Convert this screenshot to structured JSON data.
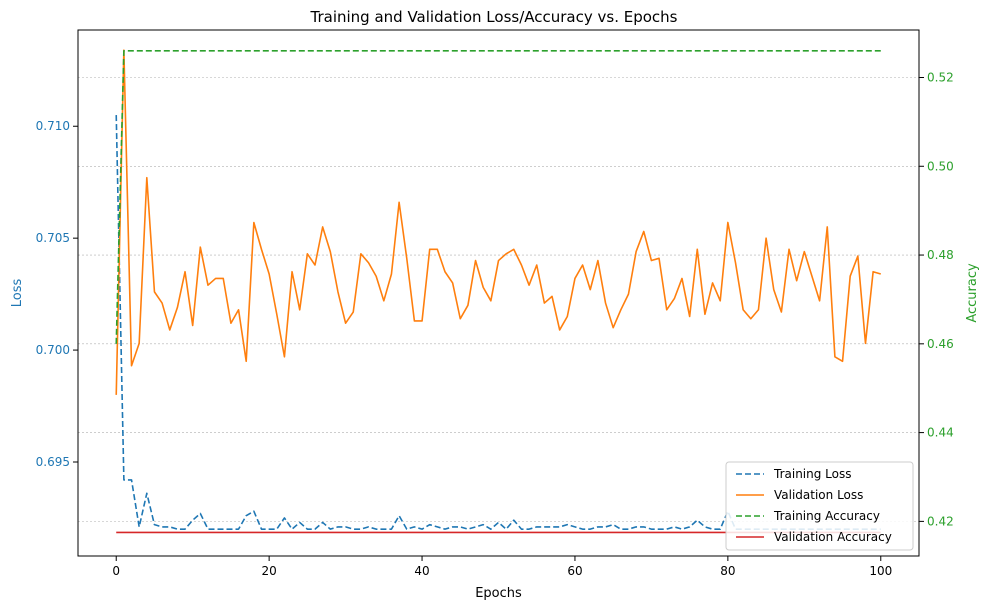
{
  "chart_data": {
    "type": "line",
    "title": "Training and Validation Loss/Accuracy vs. Epochs",
    "xlabel": "Epochs",
    "ylabel_left": "Loss",
    "ylabel_right": "Accuracy",
    "xlim": [
      -5,
      105
    ],
    "ylim_left": [
      0.6908,
      0.7143
    ],
    "ylim_right": [
      0.4122,
      0.5307
    ],
    "x_ticks": [
      0,
      20,
      40,
      60,
      80,
      100
    ],
    "x_tick_labels": [
      "0",
      "20",
      "40",
      "60",
      "80",
      "100"
    ],
    "y_left_ticks": [
      0.695,
      0.7,
      0.705,
      0.71
    ],
    "y_left_tick_labels": [
      "0.695",
      "0.700",
      "0.705",
      "0.710"
    ],
    "y_right_ticks": [
      0.42,
      0.44,
      0.46,
      0.48,
      0.5,
      0.52
    ],
    "y_right_tick_labels": [
      "0.42",
      "0.44",
      "0.46",
      "0.48",
      "0.50",
      "0.52"
    ],
    "grid": true,
    "legend_position": "lower-right",
    "colors": {
      "training_loss": "#1f77b4",
      "validation_loss": "#ff7f0e",
      "training_accuracy": "#2ca02c",
      "validation_accuracy": "#d62728",
      "grid": "#b0b0b0"
    },
    "x": [
      0,
      1,
      2,
      3,
      4,
      5,
      6,
      7,
      8,
      9,
      10,
      11,
      12,
      13,
      14,
      15,
      16,
      17,
      18,
      19,
      20,
      21,
      22,
      23,
      24,
      25,
      26,
      27,
      28,
      29,
      30,
      31,
      32,
      33,
      34,
      35,
      36,
      37,
      38,
      39,
      40,
      41,
      42,
      43,
      44,
      45,
      46,
      47,
      48,
      49,
      50,
      51,
      52,
      53,
      54,
      55,
      56,
      57,
      58,
      59,
      60,
      61,
      62,
      63,
      64,
      65,
      66,
      67,
      68,
      69,
      70,
      71,
      72,
      73,
      74,
      75,
      76,
      77,
      78,
      79,
      80,
      81,
      82,
      83,
      84,
      85,
      86,
      87,
      88,
      89,
      90,
      91,
      92,
      93,
      94,
      95,
      96,
      97,
      98,
      99,
      100
    ],
    "series": [
      {
        "name": "Training Loss",
        "axis": "left",
        "style": "dashed",
        "values": [
          0.7105,
          0.6942,
          0.6942,
          0.6921,
          0.6936,
          0.6922,
          0.6921,
          0.6921,
          0.692,
          0.692,
          0.6924,
          0.6927,
          0.692,
          0.692,
          0.692,
          0.692,
          0.692,
          0.6926,
          0.6928,
          0.692,
          0.692,
          0.692,
          0.6925,
          0.692,
          0.6923,
          0.692,
          0.692,
          0.6923,
          0.692,
          0.6921,
          0.6921,
          0.692,
          0.692,
          0.6921,
          0.692,
          0.692,
          0.692,
          0.6926,
          0.692,
          0.6921,
          0.692,
          0.6922,
          0.6921,
          0.692,
          0.6921,
          0.6921,
          0.692,
          0.6921,
          0.6922,
          0.692,
          0.6923,
          0.692,
          0.6924,
          0.692,
          0.692,
          0.6921,
          0.6921,
          0.6921,
          0.6921,
          0.6922,
          0.6921,
          0.692,
          0.692,
          0.6921,
          0.6921,
          0.6922,
          0.692,
          0.692,
          0.6921,
          0.6921,
          0.692,
          0.692,
          0.692,
          0.6921,
          0.692,
          0.6921,
          0.6924,
          0.6921,
          0.692,
          0.692,
          0.6928,
          0.692,
          0.692,
          0.692,
          0.692,
          0.692,
          0.692,
          0.692,
          0.692,
          0.692,
          0.692,
          0.692,
          0.692,
          0.692,
          0.692,
          0.692,
          0.692,
          0.692,
          0.692,
          0.692,
          0.692
        ]
      },
      {
        "name": "Validation Loss",
        "axis": "left",
        "style": "solid",
        "values": [
          0.698,
          0.7134,
          0.6993,
          0.7003,
          0.7077,
          0.7026,
          0.7021,
          0.7009,
          0.7019,
          0.7035,
          0.7011,
          0.7046,
          0.7029,
          0.7032,
          0.7032,
          0.7012,
          0.7018,
          0.6995,
          0.7057,
          0.7045,
          0.7034,
          0.7016,
          0.6997,
          0.7035,
          0.7018,
          0.7043,
          0.7038,
          0.7055,
          0.7044,
          0.7026,
          0.7012,
          0.7017,
          0.7043,
          0.7039,
          0.7033,
          0.7022,
          0.7034,
          0.7066,
          0.7041,
          0.7013,
          0.7013,
          0.7045,
          0.7045,
          0.7035,
          0.703,
          0.7014,
          0.702,
          0.704,
          0.7028,
          0.7022,
          0.704,
          0.7043,
          0.7045,
          0.7038,
          0.7029,
          0.7038,
          0.7021,
          0.7024,
          0.7009,
          0.7015,
          0.7032,
          0.7038,
          0.7027,
          0.704,
          0.7021,
          0.701,
          0.7018,
          0.7025,
          0.7044,
          0.7053,
          0.704,
          0.7041,
          0.7018,
          0.7023,
          0.7032,
          0.7015,
          0.7045,
          0.7016,
          0.703,
          0.7022,
          0.7057,
          0.7039,
          0.7018,
          0.7014,
          0.7018,
          0.705,
          0.7027,
          0.7017,
          0.7045,
          0.7031,
          0.7044,
          0.7033,
          0.7022,
          0.7055,
          0.6997,
          0.6995,
          0.7033,
          0.7042,
          0.7003,
          0.7035,
          0.7034
        ]
      },
      {
        "name": "Training Accuracy",
        "axis": "right",
        "style": "dashed",
        "values": [
          0.46,
          0.526,
          0.526,
          0.526,
          0.526,
          0.526,
          0.526,
          0.526,
          0.526,
          0.526,
          0.526,
          0.526,
          0.526,
          0.526,
          0.526,
          0.526,
          0.526,
          0.526,
          0.526,
          0.526,
          0.526,
          0.526,
          0.526,
          0.526,
          0.526,
          0.526,
          0.526,
          0.526,
          0.526,
          0.526,
          0.526,
          0.526,
          0.526,
          0.526,
          0.526,
          0.526,
          0.526,
          0.526,
          0.526,
          0.526,
          0.526,
          0.526,
          0.526,
          0.526,
          0.526,
          0.526,
          0.526,
          0.526,
          0.526,
          0.526,
          0.526,
          0.526,
          0.526,
          0.526,
          0.526,
          0.526,
          0.526,
          0.526,
          0.526,
          0.526,
          0.526,
          0.526,
          0.526,
          0.526,
          0.526,
          0.526,
          0.526,
          0.526,
          0.526,
          0.526,
          0.526,
          0.526,
          0.526,
          0.526,
          0.526,
          0.526,
          0.526,
          0.526,
          0.526,
          0.526,
          0.526,
          0.526,
          0.526,
          0.526,
          0.526,
          0.526,
          0.526,
          0.526,
          0.526,
          0.526,
          0.526,
          0.526,
          0.526,
          0.526,
          0.526,
          0.526,
          0.526,
          0.526,
          0.526,
          0.526,
          0.526
        ]
      },
      {
        "name": "Validation Accuracy",
        "axis": "right",
        "style": "solid",
        "values": [
          0.4175,
          0.4175,
          0.4175,
          0.4175,
          0.4175,
          0.4175,
          0.4175,
          0.4175,
          0.4175,
          0.4175,
          0.4175,
          0.4175,
          0.4175,
          0.4175,
          0.4175,
          0.4175,
          0.4175,
          0.4175,
          0.4175,
          0.4175,
          0.4175,
          0.4175,
          0.4175,
          0.4175,
          0.4175,
          0.4175,
          0.4175,
          0.4175,
          0.4175,
          0.4175,
          0.4175,
          0.4175,
          0.4175,
          0.4175,
          0.4175,
          0.4175,
          0.4175,
          0.4175,
          0.4175,
          0.4175,
          0.4175,
          0.4175,
          0.4175,
          0.4175,
          0.4175,
          0.4175,
          0.4175,
          0.4175,
          0.4175,
          0.4175,
          0.4175,
          0.4175,
          0.4175,
          0.4175,
          0.4175,
          0.4175,
          0.4175,
          0.4175,
          0.4175,
          0.4175,
          0.4175,
          0.4175,
          0.4175,
          0.4175,
          0.4175,
          0.4175,
          0.4175,
          0.4175,
          0.4175,
          0.4175,
          0.4175,
          0.4175,
          0.4175,
          0.4175,
          0.4175,
          0.4175,
          0.4175,
          0.4175,
          0.4175,
          0.4175,
          0.4175,
          0.4175,
          0.4175,
          0.4175,
          0.4175,
          0.4175,
          0.4175,
          0.4175,
          0.4175,
          0.4175,
          0.4175,
          0.4175,
          0.4175,
          0.4175,
          0.4175,
          0.4175,
          0.4175,
          0.4175,
          0.4175,
          0.4175,
          0.4175
        ]
      }
    ]
  }
}
